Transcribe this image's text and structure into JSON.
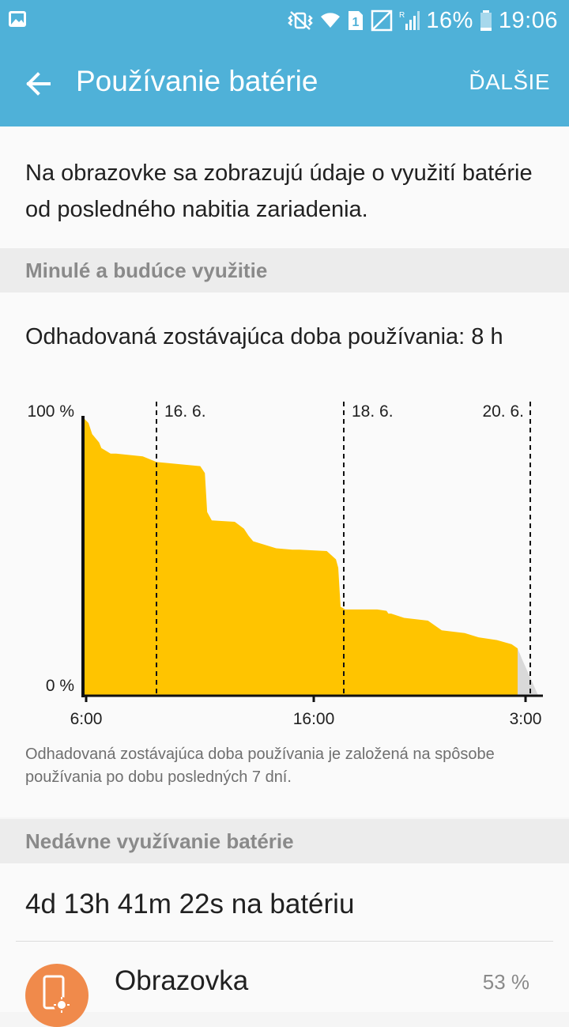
{
  "status_bar": {
    "battery_percent": "16%",
    "time": "19:06",
    "sim_slot": "1",
    "network_roaming_flag": "R",
    "icons": [
      "gallery-notification-icon",
      "mute-vibrate-icon",
      "wifi-icon",
      "sim-icon",
      "no-signal-icon",
      "signal-icon",
      "battery-icon"
    ]
  },
  "app_bar": {
    "title": "Používanie batérie",
    "more_label": "ĎALŠIE"
  },
  "intro": {
    "text": "Na obrazovke sa zobrazujú údaje o využití batérie od posledného nabitia zariadenia."
  },
  "usage_section": {
    "header": "Minulé a budúce využitie",
    "estimate": "Odhadovaná zostávajúca doba používania: 8 h",
    "footnote": "Odhadovaná zostávajúca doba používania je založená na spôsobe používania po dobu posledných 7 dní."
  },
  "chart_data": {
    "type": "area",
    "ylim": [
      0,
      100
    ],
    "y_tick_labels": [
      "100 %",
      "0 %"
    ],
    "x_tick_labels": [
      "6:00",
      "16:00",
      "3:00"
    ],
    "date_markers": [
      "16. 6.",
      "18. 6.",
      "20. 6."
    ],
    "series": [
      {
        "x": [
          0,
          0.012,
          0.02,
          0.035,
          0.04,
          0.05,
          0.06,
          0.072,
          0.13,
          0.16,
          0.255,
          0.265,
          0.27,
          0.28,
          0.33,
          0.35,
          0.36,
          0.37,
          0.42,
          0.455,
          0.47,
          0.53,
          0.55,
          0.555,
          0.56,
          0.57,
          0.64,
          0.66,
          0.664,
          0.67,
          0.698,
          0.75,
          0.78,
          0.83,
          0.86,
          0.9,
          0.932,
          0.945
        ],
        "values": [
          100,
          98,
          94,
          91,
          89,
          88,
          87,
          87,
          86,
          84,
          82.5,
          80,
          66,
          63,
          62.5,
          60,
          57.5,
          55.5,
          53,
          52.5,
          52.5,
          52,
          49,
          46,
          32,
          31,
          31,
          30.5,
          29.5,
          29.5,
          28,
          27,
          23.5,
          22.5,
          21,
          20,
          18.5,
          17
        ]
      },
      {
        "x": [
          0.945,
          0.955,
          0.99
        ],
        "values": [
          17,
          13,
          0
        ]
      }
    ],
    "colors": {
      "fill": "#FFC400",
      "projection_fill": "#D9D9D9",
      "axis": "#111111"
    }
  },
  "recent_section": {
    "header": "Nedávne využívanie batérie",
    "total_on_battery": "4d 13h 41m 22s na batériu",
    "items": [
      {
        "name": "Obrazovka",
        "percent": "53 %",
        "icon": "screen-brightness-icon"
      }
    ]
  },
  "colors": {
    "accent": "#4FB1D8",
    "chart_fill": "#FFC400",
    "icon_bg": "#F08A4B"
  }
}
